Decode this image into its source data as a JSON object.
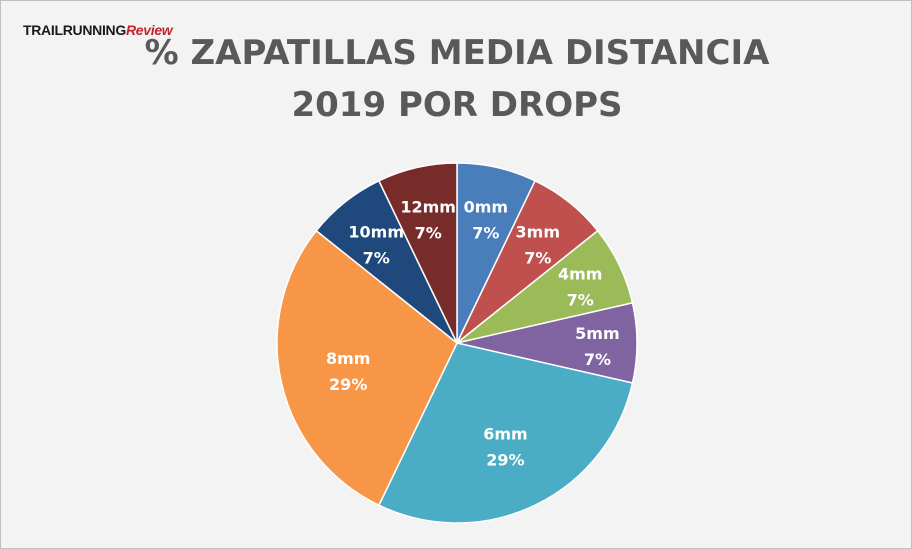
{
  "logo": {
    "part1": "TRAILRUNNING",
    "part2": "Review"
  },
  "chart_data": {
    "type": "pie",
    "title_lines": [
      "% ZAPATILLAS MEDIA DISTANCIA",
      "2019 POR  DROPS"
    ],
    "series": [
      {
        "label": "0mm",
        "percent_label": "7%",
        "value": 7.14,
        "color": "#4a7ebb"
      },
      {
        "label": "3mm",
        "percent_label": "7%",
        "value": 7.14,
        "color": "#c0504d"
      },
      {
        "label": "4mm",
        "percent_label": "7%",
        "value": 7.14,
        "color": "#9bbb59"
      },
      {
        "label": "5mm",
        "percent_label": "7%",
        "value": 7.14,
        "color": "#8064a2"
      },
      {
        "label": "6mm",
        "percent_label": "29%",
        "value": 28.57,
        "color": "#4bacc6"
      },
      {
        "label": "8mm",
        "percent_label": "29%",
        "value": 28.57,
        "color": "#f79646"
      },
      {
        "label": "10mm",
        "percent_label": "7%",
        "value": 7.14,
        "color": "#1f497d"
      },
      {
        "label": "12mm",
        "percent_label": "7%",
        "value": 7.14,
        "color": "#772c2a"
      }
    ]
  }
}
